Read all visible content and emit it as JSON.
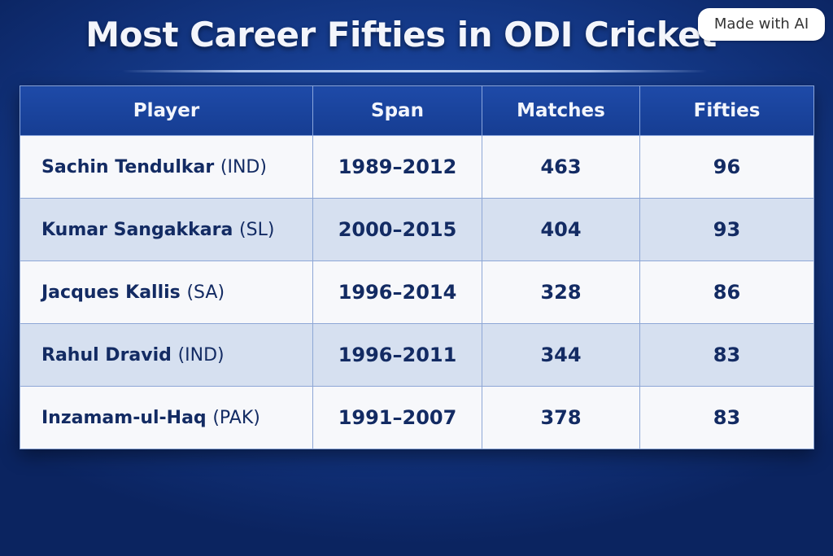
{
  "badge": "Made with AI",
  "chart_data": {
    "type": "table",
    "title": "Most Career Fifties in ODI Cricket",
    "columns": [
      "Player",
      "Span",
      "Matches",
      "Fifties"
    ],
    "rows": [
      {
        "player": "Sachin Tendulkar",
        "country": "(IND)",
        "span": "1989–2012",
        "matches": "463",
        "fifties": "96"
      },
      {
        "player": "Kumar Sangakkara",
        "country": "(SL)",
        "span": "2000–2015",
        "matches": "404",
        "fifties": "93"
      },
      {
        "player": "Jacques Kallis",
        "country": "(SA)",
        "span": "1996–2014",
        "matches": "328",
        "fifties": "86"
      },
      {
        "player": "Rahul Dravid",
        "country": "(IND)",
        "span": "1996–2011",
        "matches": "344",
        "fifties": "83"
      },
      {
        "player": "Inzamam-ul-Haq",
        "country": "(PAK)",
        "span": "1991–2007",
        "matches": "378",
        "fifties": "83"
      }
    ]
  }
}
